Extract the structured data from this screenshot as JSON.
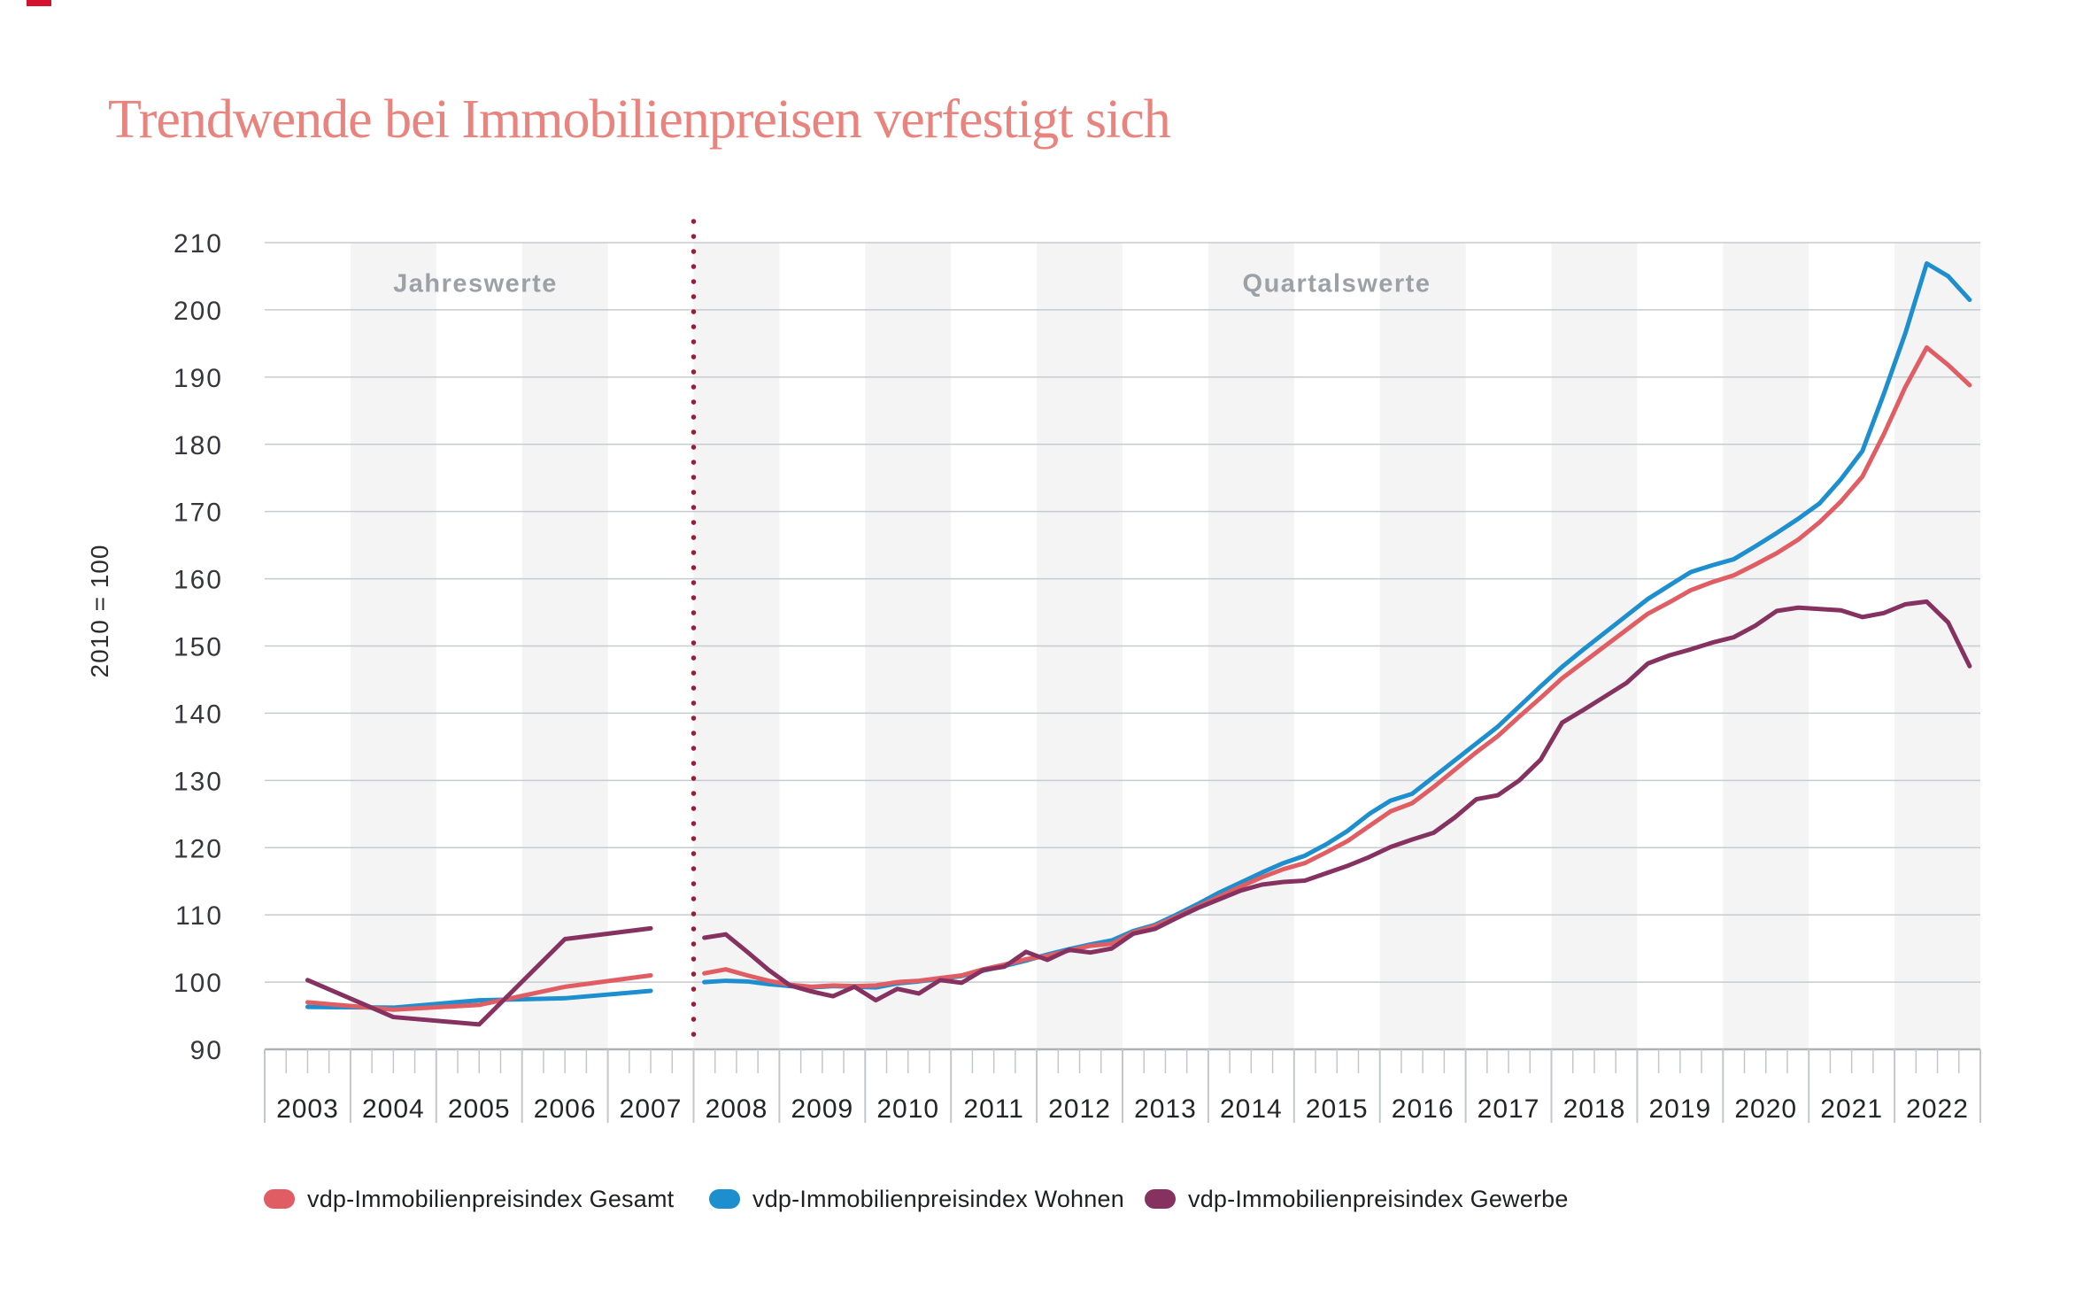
{
  "title": "Trendwende bei Immobilienpreisen verfestigt sich",
  "colors": {
    "title_accent": "#e8837e",
    "gesamt": "#e05e63",
    "wohnen": "#1e8fce",
    "gewerbe": "#853261",
    "divider": "#9e1c33",
    "band_gray": "#f4f4f5",
    "gridline": "#c7cace",
    "axis_line": "#aeb2b7",
    "tick": "#c3c7cb"
  },
  "sections": {
    "annual": "Jahreswerte",
    "quarterly": "Quartalswerte"
  },
  "y_axis": {
    "title": "2010 = 100",
    "ticks": [
      210,
      200,
      190,
      180,
      170,
      160,
      150,
      140,
      130,
      120,
      110,
      100,
      90
    ]
  },
  "x_axis": {
    "years": [
      "2003",
      "2004",
      "2005",
      "2006",
      "2007",
      "2008",
      "2009",
      "2010",
      "2011",
      "2012",
      "2013",
      "2014",
      "2015",
      "2016",
      "2017",
      "2018",
      "2019",
      "2020",
      "2021",
      "2022"
    ]
  },
  "legend": {
    "items": [
      {
        "label": "vdp-Immobilienpreisindex Gesamt"
      },
      {
        "label": "vdp-Immobilienpreisindex Wohnen"
      },
      {
        "label": "vdp-Immobilienpreisindex Gewerbe"
      }
    ]
  },
  "chart_data": {
    "type": "line",
    "title": "Trendwende bei Immobilienpreisen verfestigt sich",
    "xlabel": "",
    "ylabel": "2010 = 100",
    "ylim": [
      90,
      210
    ],
    "grid": true,
    "legend_position": "bottom",
    "annual_years": [
      2003,
      2004,
      2005,
      2006,
      2007
    ],
    "quarterly_range": "2008-Q1 to 2022-Q4",
    "divider_label_left": "Jahreswerte",
    "divider_label_right": "Quartalswerte",
    "series": [
      {
        "name": "vdp-Immobilienpreisindex Gesamt",
        "color": "#e05e63",
        "annual": [
          97.0,
          95.9,
          96.6,
          99.3,
          101.0
        ],
        "quarterly": [
          101.3,
          101.9,
          101.0,
          100.2,
          99.6,
          99.3,
          99.5,
          99.4,
          99.5,
          100.0,
          100.2,
          100.6,
          101.0,
          101.9,
          102.6,
          103.4,
          103.9,
          104.7,
          105.4,
          105.7,
          107.4,
          108.3,
          109.7,
          111.2,
          112.7,
          114.2,
          115.6,
          116.8,
          117.7,
          119.3,
          121.0,
          123.2,
          125.4,
          126.6,
          129.0,
          131.6,
          134.2,
          136.6,
          139.5,
          142.3,
          145.2,
          147.6,
          150.0,
          152.4,
          154.8,
          156.5,
          158.3,
          159.5,
          160.5,
          162.1,
          163.8,
          165.8,
          168.4,
          171.5,
          175.2,
          181.5,
          188.5,
          194.4,
          191.8,
          188.8
        ]
      },
      {
        "name": "vdp-Immobilienpreisindex Wohnen",
        "color": "#1e8fce",
        "annual": [
          96.3,
          96.2,
          97.3,
          97.6,
          98.7
        ],
        "quarterly": [
          100.0,
          100.2,
          100.1,
          99.7,
          99.4,
          99.2,
          99.4,
          99.3,
          99.2,
          99.8,
          100.1,
          100.5,
          100.9,
          101.7,
          102.4,
          103.2,
          104.1,
          104.9,
          105.6,
          106.2,
          107.6,
          108.5,
          110.0,
          111.6,
          113.3,
          114.8,
          116.3,
          117.7,
          118.8,
          120.5,
          122.5,
          125.0,
          127.0,
          128.0,
          130.5,
          133.0,
          135.5,
          138.0,
          141.0,
          144.0,
          146.9,
          149.5,
          152.0,
          154.5,
          157.0,
          159.0,
          161.0,
          162.0,
          162.9,
          164.8,
          166.8,
          168.9,
          171.2,
          174.8,
          179.0,
          187.5,
          196.5,
          206.9,
          205.0,
          201.5
        ]
      },
      {
        "name": "vdp-Immobilienpreisindex Gewerbe",
        "color": "#853261",
        "annual": [
          100.3,
          94.8,
          93.7,
          106.4,
          108.0
        ],
        "quarterly": [
          106.6,
          107.1,
          104.5,
          101.8,
          99.5,
          98.6,
          97.9,
          99.3,
          97.3,
          99.0,
          98.3,
          100.3,
          99.9,
          101.8,
          102.3,
          104.5,
          103.3,
          104.8,
          104.4,
          105.0,
          107.2,
          107.9,
          109.5,
          111.0,
          112.3,
          113.6,
          114.5,
          114.9,
          115.1,
          116.2,
          117.3,
          118.6,
          120.1,
          121.2,
          122.2,
          124.5,
          127.2,
          127.8,
          130.0,
          133.1,
          138.6,
          140.5,
          142.5,
          144.5,
          147.4,
          148.6,
          149.5,
          150.5,
          151.3,
          153.0,
          155.2,
          155.7,
          155.5,
          155.3,
          154.3,
          154.9,
          156.2,
          156.6,
          153.5,
          147.0
        ]
      }
    ]
  }
}
